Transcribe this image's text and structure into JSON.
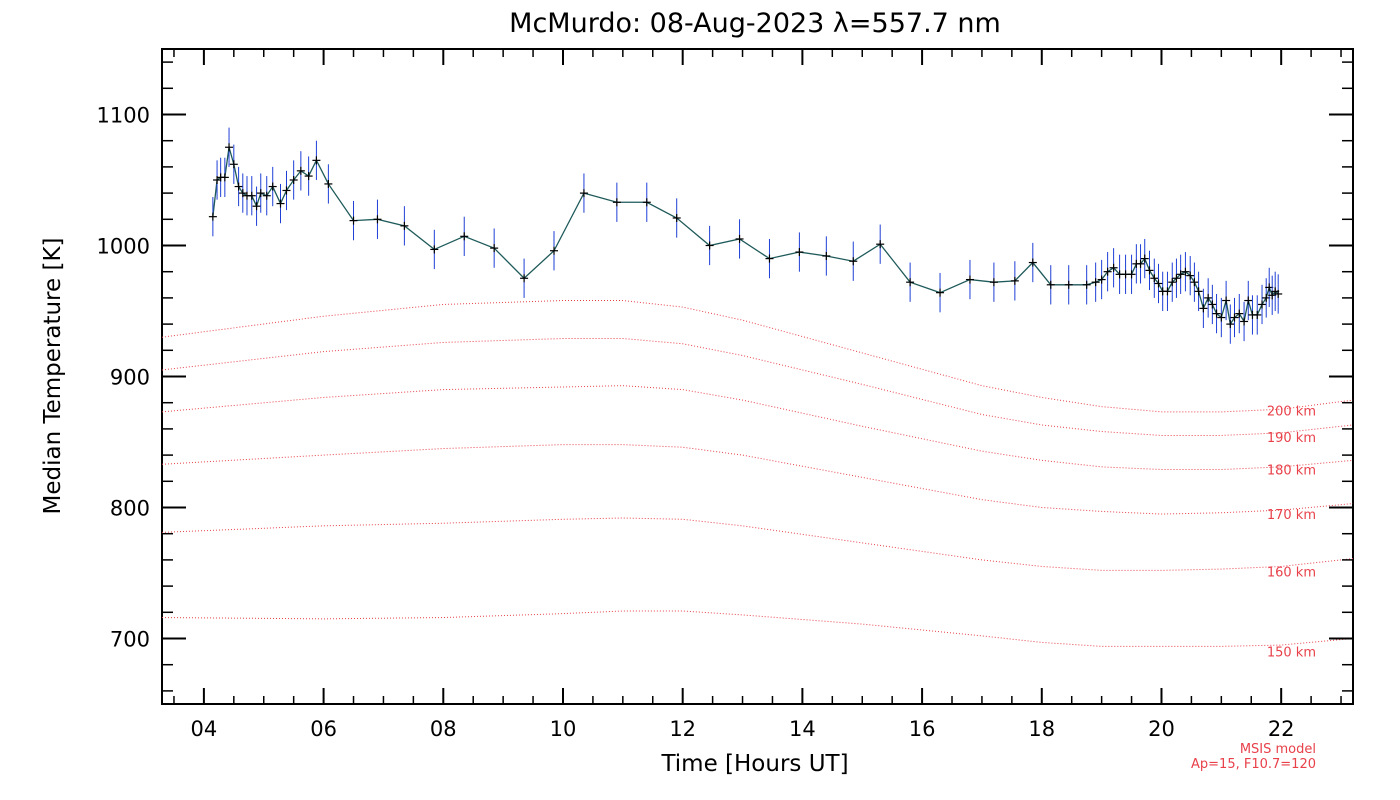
{
  "chart_data": {
    "type": "line",
    "title": "McMurdo: 08-Aug-2023 λ=557.7 nm",
    "xlabel": "Time [Hours UT]",
    "ylabel": "Median Temperature [K]",
    "xlim": [
      3.3,
      23.2
    ],
    "ylim": [
      650,
      1150
    ],
    "x_ticks": [
      4,
      6,
      8,
      10,
      12,
      14,
      16,
      18,
      20,
      22
    ],
    "x_tick_labels": [
      "04",
      "06",
      "08",
      "10",
      "12",
      "14",
      "16",
      "18",
      "20",
      "22"
    ],
    "y_ticks": [
      700,
      800,
      900,
      1000,
      1100
    ],
    "y_tick_labels": [
      "700",
      "800",
      "900",
      "1000",
      "1100"
    ],
    "grid": false,
    "colors": {
      "measurement_line": "#1f5a5a",
      "error_bar": "#1e3fd6",
      "marker": "#000000",
      "model": "#e8414a"
    },
    "series": [
      {
        "error": 15,
        "points": [
          [
            4.15,
            1022
          ],
          [
            4.22,
            1050
          ],
          [
            4.28,
            1052
          ],
          [
            4.35,
            1052
          ],
          [
            4.42,
            1075
          ],
          [
            4.5,
            1062
          ],
          [
            4.58,
            1045
          ],
          [
            4.65,
            1040
          ],
          [
            4.72,
            1038
          ],
          [
            4.8,
            1038
          ],
          [
            4.88,
            1030
          ],
          [
            4.95,
            1040
          ],
          [
            5.05,
            1038
          ],
          [
            5.15,
            1045
          ],
          [
            5.28,
            1032
          ],
          [
            5.38,
            1042
          ],
          [
            5.5,
            1050
          ],
          [
            5.62,
            1057
          ],
          [
            5.75,
            1053
          ],
          [
            5.88,
            1065
          ],
          [
            6.08,
            1047
          ],
          [
            6.5,
            1019
          ],
          [
            6.9,
            1020
          ],
          [
            7.35,
            1015
          ],
          [
            7.85,
            997
          ],
          [
            8.35,
            1007
          ],
          [
            8.85,
            998
          ],
          [
            9.35,
            975
          ],
          [
            9.85,
            996
          ],
          [
            10.35,
            1040
          ],
          [
            10.9,
            1033
          ],
          [
            11.4,
            1033
          ],
          [
            11.9,
            1021
          ],
          [
            12.45,
            1000
          ],
          [
            12.95,
            1005
          ],
          [
            13.45,
            990
          ],
          [
            13.95,
            995
          ],
          [
            14.4,
            992
          ],
          [
            14.85,
            988
          ],
          [
            15.3,
            1001
          ],
          [
            15.8,
            972
          ],
          [
            16.3,
            964
          ],
          [
            16.8,
            974
          ],
          [
            17.2,
            972
          ],
          [
            17.55,
            973
          ],
          [
            17.85,
            987
          ],
          [
            18.15,
            970
          ],
          [
            18.45,
            970
          ],
          [
            18.75,
            970
          ],
          [
            18.9,
            972
          ],
          [
            19.0,
            974
          ],
          [
            19.1,
            980
          ],
          [
            19.2,
            983
          ],
          [
            19.3,
            978
          ],
          [
            19.4,
            978
          ],
          [
            19.5,
            978
          ],
          [
            19.58,
            986
          ],
          [
            19.65,
            986
          ],
          [
            19.72,
            990
          ],
          [
            19.8,
            981
          ],
          [
            19.88,
            975
          ],
          [
            19.95,
            971
          ],
          [
            20.02,
            965
          ],
          [
            20.1,
            965
          ],
          [
            20.18,
            972
          ],
          [
            20.25,
            975
          ],
          [
            20.32,
            978
          ],
          [
            20.4,
            980
          ],
          [
            20.48,
            977
          ],
          [
            20.55,
            972
          ],
          [
            20.62,
            965
          ],
          [
            20.7,
            952
          ],
          [
            20.78,
            960
          ],
          [
            20.85,
            955
          ],
          [
            20.92,
            948
          ],
          [
            21.0,
            945
          ],
          [
            21.08,
            958
          ],
          [
            21.15,
            940
          ],
          [
            21.22,
            945
          ],
          [
            21.3,
            948
          ],
          [
            21.38,
            942
          ],
          [
            21.45,
            958
          ],
          [
            21.52,
            947
          ],
          [
            21.6,
            947
          ],
          [
            21.68,
            955
          ],
          [
            21.75,
            960
          ],
          [
            21.8,
            968
          ],
          [
            21.85,
            962
          ],
          [
            21.9,
            965
          ],
          [
            21.95,
            963
          ]
        ]
      }
    ],
    "model_curves": [
      {
        "label": "150 km",
        "label_value": 690,
        "points": [
          [
            3.3,
            716
          ],
          [
            6,
            715
          ],
          [
            8,
            716
          ],
          [
            10,
            719
          ],
          [
            11,
            721
          ],
          [
            12,
            721
          ],
          [
            13,
            718
          ],
          [
            15,
            711
          ],
          [
            17,
            702
          ],
          [
            18,
            697
          ],
          [
            19,
            694
          ],
          [
            20,
            694
          ],
          [
            21,
            694
          ],
          [
            22,
            695
          ],
          [
            23.2,
            700
          ]
        ]
      },
      {
        "label": "160 km",
        "label_value": 751,
        "points": [
          [
            3.3,
            781
          ],
          [
            6,
            786
          ],
          [
            8,
            788
          ],
          [
            10,
            791
          ],
          [
            11,
            792
          ],
          [
            12,
            791
          ],
          [
            13,
            786
          ],
          [
            15,
            773
          ],
          [
            17,
            760
          ],
          [
            18,
            755
          ],
          [
            19,
            752
          ],
          [
            20,
            752
          ],
          [
            21,
            753
          ],
          [
            22,
            755
          ],
          [
            23.2,
            761
          ]
        ]
      },
      {
        "label": "170 km",
        "label_value": 795,
        "points": [
          [
            3.3,
            833
          ],
          [
            6,
            840
          ],
          [
            8,
            845
          ],
          [
            10,
            848
          ],
          [
            11,
            848
          ],
          [
            12,
            846
          ],
          [
            13,
            840
          ],
          [
            15,
            823
          ],
          [
            17,
            806
          ],
          [
            18,
            800
          ],
          [
            19,
            797
          ],
          [
            20,
            795
          ],
          [
            21,
            796
          ],
          [
            22,
            798
          ],
          [
            23.2,
            803
          ]
        ]
      },
      {
        "label": "180 km",
        "label_value": 829,
        "points": [
          [
            3.3,
            873
          ],
          [
            6,
            884
          ],
          [
            8,
            890
          ],
          [
            10,
            892
          ],
          [
            11,
            893
          ],
          [
            12,
            890
          ],
          [
            13,
            882
          ],
          [
            15,
            862
          ],
          [
            17,
            843
          ],
          [
            18,
            836
          ],
          [
            19,
            831
          ],
          [
            20,
            829
          ],
          [
            21,
            829
          ],
          [
            22,
            831
          ],
          [
            23.2,
            836
          ]
        ]
      },
      {
        "label": "190 km",
        "label_value": 854,
        "points": [
          [
            3.3,
            905
          ],
          [
            6,
            919
          ],
          [
            8,
            926
          ],
          [
            10,
            929
          ],
          [
            11,
            929
          ],
          [
            12,
            925
          ],
          [
            13,
            916
          ],
          [
            15,
            894
          ],
          [
            17,
            871
          ],
          [
            18,
            863
          ],
          [
            19,
            858
          ],
          [
            20,
            855
          ],
          [
            21,
            855
          ],
          [
            22,
            857
          ],
          [
            23.2,
            863
          ]
        ]
      },
      {
        "label": "200 km",
        "label_value": 874,
        "points": [
          [
            3.3,
            930
          ],
          [
            6,
            946
          ],
          [
            8,
            955
          ],
          [
            10,
            958
          ],
          [
            11,
            958
          ],
          [
            12,
            953
          ],
          [
            13,
            943
          ],
          [
            15,
            918
          ],
          [
            17,
            893
          ],
          [
            18,
            884
          ],
          [
            19,
            877
          ],
          [
            20,
            873
          ],
          [
            21,
            873
          ],
          [
            22,
            875
          ],
          [
            23.2,
            882
          ]
        ]
      }
    ],
    "notes": [
      "MSIS model",
      "Ap=15, F10.7=120"
    ]
  }
}
